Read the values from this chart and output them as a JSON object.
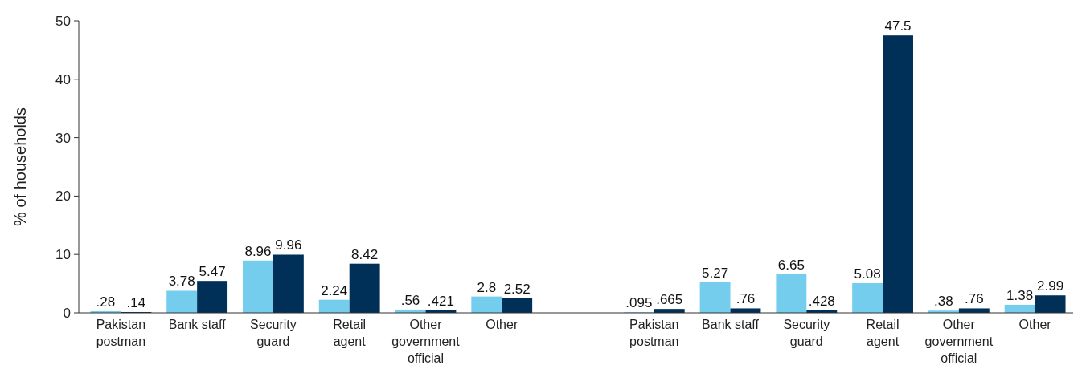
{
  "chart_data": {
    "type": "bar",
    "ylabel": "% of households",
    "categories": [
      "Pakistan postman",
      "Bank staff",
      "Security guard",
      "Retail agent",
      "Other government official",
      "Other",
      null,
      "Pakistan postman",
      "Bank staff",
      "Security guard",
      "Retail agent",
      "Other government official",
      "Other"
    ],
    "series": [
      {
        "color": "#75cdee",
        "values": [
          0.28,
          3.78,
          8.96,
          2.24,
          0.56,
          2.8,
          null,
          0.095,
          5.27,
          6.65,
          5.08,
          0.38,
          1.38
        ],
        "value_labels": [
          ".28",
          "3.78",
          "8.96",
          "2.24",
          ".56",
          "2.8",
          null,
          ".095",
          "5.27",
          "6.65",
          "5.08",
          ".38",
          "1.38"
        ]
      },
      {
        "color": "#003057",
        "values": [
          0.14,
          5.47,
          9.96,
          8.42,
          0.421,
          2.52,
          null,
          0.665,
          0.76,
          0.428,
          47.5,
          0.76,
          2.99
        ],
        "value_labels": [
          ".14",
          "5.47",
          "9.96",
          "8.42",
          ".421",
          "2.52",
          null,
          ".665",
          ".76",
          ".428",
          "47.5",
          ".76",
          "2.99"
        ]
      }
    ],
    "ylim": [
      0,
      50
    ],
    "yticks": [
      0,
      10,
      20,
      30,
      40,
      50
    ],
    "grid": false
  }
}
